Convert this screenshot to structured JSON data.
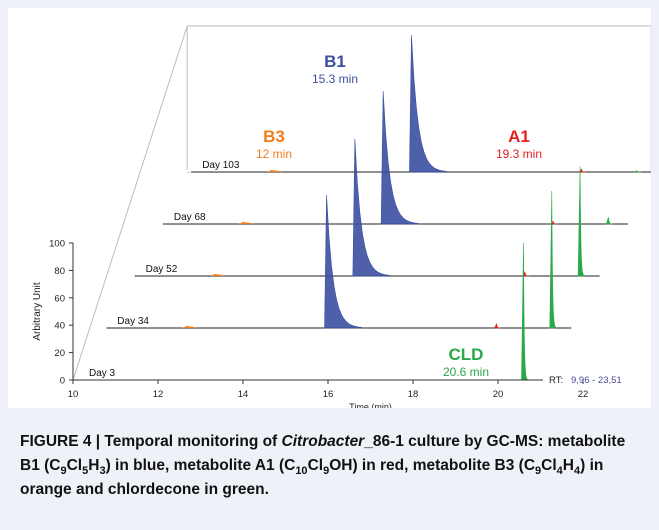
{
  "figure": {
    "caption": {
      "prefix": "FIGURE 4 | Temporal monitoring of ",
      "organism": "Citrobacter",
      "strain": "_86-1 culture by GC-MS: metabolite B1 (C",
      "b1_sub1": "9",
      "b1_mid": "Cl",
      "b1_sub2": "5",
      "b1_end": "H",
      "b1_sub3": "3",
      "b1_tail": ") in blue, metabolite A1 (C",
      "a1_sub1": "10",
      "a1_mid": "Cl",
      "a1_sub2": "9",
      "a1_tail": "OH) in red, metabolite B3 (C",
      "b3_sub1": "9",
      "b3_mid": "Cl",
      "b3_sub2": "4",
      "b3_end": "H",
      "b3_sub3": "4",
      "b3_tail": ") in orange and chlordecone in green."
    }
  },
  "chart_data": {
    "type": "line",
    "title": "",
    "xlabel": "Time (min)",
    "ylabel": "Arbitrary Unit",
    "xlim": [
      10,
      24
    ],
    "ylim": [
      0,
      100
    ],
    "x_ticks": [
      10,
      12,
      14,
      16,
      18,
      20,
      22
    ],
    "y_ticks": [
      0,
      20,
      40,
      60,
      80,
      100
    ],
    "rt_label": "RT:",
    "rt_range": "9,96 - 23,51",
    "colors": {
      "B1": "#3b4fa0",
      "A1": "#e0201c",
      "B3": "#f07d1a",
      "CLD": "#2aa84a",
      "baseline": "#222222"
    },
    "compounds": [
      {
        "name": "B1",
        "label": "B1",
        "rt_label": "15.3 min",
        "rt": 15.3,
        "color": "#3b4fa0"
      },
      {
        "name": "B3",
        "label": "B3",
        "rt_label": "12 min",
        "rt": 12.0,
        "color": "#f07d1a"
      },
      {
        "name": "A1",
        "label": "A1",
        "rt_label": "19.3 min",
        "rt": 19.3,
        "color": "#e0201c"
      },
      {
        "name": "CLD",
        "label": "CLD",
        "rt_label": "20.6 min",
        "rt": 20.6,
        "color": "#2aa84a"
      }
    ],
    "series": [
      {
        "name": "Day 3",
        "peaks": {
          "B1": 0,
          "B3": 0,
          "A1": 0,
          "CLD": 100
        }
      },
      {
        "name": "Day 34",
        "peaks": {
          "B1": 97,
          "B3": 1,
          "A1": 3,
          "CLD": 100
        }
      },
      {
        "name": "Day 52",
        "peaks": {
          "B1": 100,
          "B3": 1,
          "A1": 3,
          "CLD": 80
        }
      },
      {
        "name": "Day 68",
        "peaks": {
          "B1": 97,
          "B3": 1,
          "A1": 2,
          "CLD": 5
        }
      },
      {
        "name": "Day 103",
        "peaks": {
          "B1": 100,
          "B3": 1,
          "A1": 2,
          "CLD": 1
        }
      }
    ]
  }
}
